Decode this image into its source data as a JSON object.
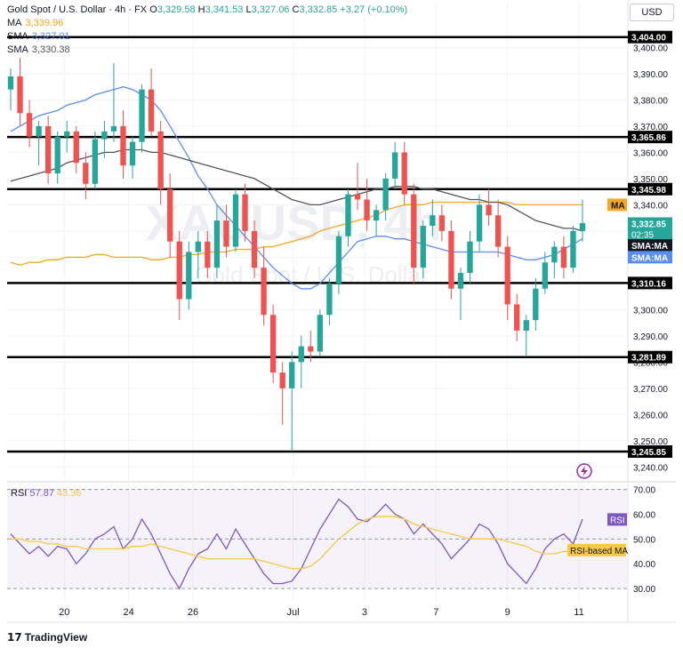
{
  "header": {
    "symbol": "Gold Spot / U.S. Dollar · 4h · FX",
    "open_label": "O",
    "open": "3,329.58",
    "high_label": "H",
    "high": "3,341.53",
    "low_label": "L",
    "low": "3,327.06",
    "close_label": "C",
    "close": "3,332.85",
    "change": "+3.27 (+0.10%)",
    "ma_label": "MA",
    "ma_value": "3,339.96",
    "sma1_label": "SMA",
    "sma1_value": "3,327.01",
    "sma2_label": "SMA",
    "sma2_value": "3,330.38"
  },
  "currency": "USD",
  "watermark": {
    "symbol": "XAUUSD, 4h",
    "name": "Gold Spot / U.S. Dollar"
  },
  "branding": "TradingView",
  "colors": {
    "up": "#26a69a",
    "down": "#ef5350",
    "ma": "#f5a623",
    "sma_fast": "#5b8def",
    "sma_slow": "#555555",
    "rsi": "#7e57c2",
    "rsi_ma": "#f7c948",
    "level": "#000000"
  },
  "chart_data": [
    {
      "type": "candlestick",
      "title": "Gold Spot / U.S. Dollar · 4h · FX",
      "ylim": [
        3235,
        3410
      ],
      "y_ticks": [
        3240,
        3250,
        3260,
        3270,
        3280,
        3290,
        3300,
        3310,
        3320,
        3330,
        3340,
        3350,
        3360,
        3370,
        3380,
        3390,
        3400
      ],
      "y_tick_labels": [
        "3,240.00",
        "3,250.00",
        "3,260.00",
        "3,270.00",
        "3,280.00",
        "3,290.00",
        "3,300.00",
        "3,310.00",
        "3,320.00",
        "3,330.00",
        "3,340.00",
        "3,350.00",
        "3,360.00",
        "3,370.00",
        "3,380.00",
        "3,390.00",
        "3,400.00"
      ],
      "x_tick_labels": [
        "20",
        "24",
        "26",
        "Jul",
        "3",
        "7",
        "9",
        "11"
      ],
      "horizontal_levels": [
        {
          "value": 3404.0,
          "label": "3,404.00"
        },
        {
          "value": 3365.86,
          "label": "3,365.86"
        },
        {
          "value": 3345.98,
          "label": "3,345.98"
        },
        {
          "value": 3310.16,
          "label": "3,310.16"
        },
        {
          "value": 3281.89,
          "label": "3,281.89"
        },
        {
          "value": 3245.85,
          "label": "3,245.85"
        }
      ],
      "price_tags": [
        {
          "value": 3340.0,
          "label": "MA",
          "color": "#f5a623"
        },
        {
          "value": 3332.85,
          "label": "3,332.85",
          "sub": "02:35",
          "color": "#26a69a"
        },
        {
          "value": 3324.5,
          "label": "SMA:MA",
          "color": "#131722"
        },
        {
          "value": 3320.0,
          "label": "SMA:MA",
          "color": "#5b8def"
        }
      ],
      "candles": [
        [
          3384,
          3392,
          3376,
          3389
        ],
        [
          3389,
          3396,
          3370,
          3375
        ],
        [
          3375,
          3380,
          3362,
          3366
        ],
        [
          3366,
          3372,
          3355,
          3370
        ],
        [
          3370,
          3374,
          3348,
          3352
        ],
        [
          3352,
          3368,
          3348,
          3366
        ],
        [
          3366,
          3372,
          3360,
          3368
        ],
        [
          3368,
          3370,
          3352,
          3356
        ],
        [
          3356,
          3360,
          3342,
          3348
        ],
        [
          3348,
          3368,
          3346,
          3365
        ],
        [
          3365,
          3372,
          3358,
          3368
        ],
        [
          3368,
          3394,
          3364,
          3370
        ],
        [
          3370,
          3376,
          3350,
          3355
        ],
        [
          3355,
          3366,
          3350,
          3364
        ],
        [
          3364,
          3386,
          3360,
          3384
        ],
        [
          3384,
          3392,
          3366,
          3368
        ],
        [
          3368,
          3372,
          3340,
          3346
        ],
        [
          3346,
          3352,
          3320,
          3326
        ],
        [
          3326,
          3330,
          3296,
          3304
        ],
        [
          3304,
          3326,
          3300,
          3322
        ],
        [
          3322,
          3330,
          3312,
          3326
        ],
        [
          3326,
          3330,
          3312,
          3316
        ],
        [
          3316,
          3340,
          3312,
          3334
        ],
        [
          3334,
          3340,
          3320,
          3324
        ],
        [
          3324,
          3346,
          3322,
          3344
        ],
        [
          3344,
          3348,
          3326,
          3330
        ],
        [
          3330,
          3334,
          3312,
          3316
        ],
        [
          3316,
          3324,
          3294,
          3298
        ],
        [
          3298,
          3302,
          3272,
          3276
        ],
        [
          3276,
          3280,
          3256,
          3270
        ],
        [
          3270,
          3284,
          3246,
          3280
        ],
        [
          3280,
          3290,
          3270,
          3286
        ],
        [
          3286,
          3292,
          3280,
          3284
        ],
        [
          3284,
          3300,
          3282,
          3298
        ],
        [
          3298,
          3312,
          3294,
          3310
        ],
        [
          3310,
          3330,
          3306,
          3328
        ],
        [
          3328,
          3346,
          3324,
          3344
        ],
        [
          3344,
          3356,
          3338,
          3342
        ],
        [
          3342,
          3350,
          3330,
          3334
        ],
        [
          3334,
          3340,
          3328,
          3338
        ],
        [
          3338,
          3352,
          3334,
          3350
        ],
        [
          3350,
          3364,
          3346,
          3360
        ],
        [
          3360,
          3364,
          3340,
          3344
        ],
        [
          3344,
          3348,
          3310,
          3316
        ],
        [
          3316,
          3334,
          3312,
          3332
        ],
        [
          3332,
          3342,
          3328,
          3336
        ],
        [
          3336,
          3340,
          3326,
          3330
        ],
        [
          3330,
          3334,
          3304,
          3308
        ],
        [
          3308,
          3316,
          3296,
          3314
        ],
        [
          3314,
          3330,
          3310,
          3326
        ],
        [
          3326,
          3344,
          3322,
          3340
        ],
        [
          3340,
          3346,
          3332,
          3336
        ],
        [
          3336,
          3342,
          3320,
          3324
        ],
        [
          3324,
          3328,
          3296,
          3302
        ],
        [
          3302,
          3306,
          3288,
          3292
        ],
        [
          3292,
          3298,
          3282,
          3296
        ],
        [
          3296,
          3312,
          3292,
          3308
        ],
        [
          3308,
          3322,
          3306,
          3318
        ],
        [
          3318,
          3326,
          3312,
          3324
        ],
        [
          3324,
          3328,
          3312,
          3316
        ],
        [
          3316,
          3332,
          3314,
          3330
        ],
        [
          3330,
          3342,
          3326,
          3333
        ]
      ],
      "series": [
        {
          "name": "MA",
          "values": [
            3318,
            3317,
            3318,
            3318,
            3319,
            3319,
            3320,
            3320,
            3320,
            3321,
            3321,
            3320,
            3320,
            3320,
            3320,
            3319,
            3319,
            3320,
            3320,
            3321,
            3321,
            3322,
            3322,
            3322,
            3323,
            3323,
            3323,
            3324,
            3324,
            3325,
            3326,
            3327,
            3328,
            3330,
            3331,
            3332,
            3333,
            3334,
            3335,
            3336,
            3338,
            3339,
            3340,
            3340,
            3340,
            3341,
            3341,
            3341,
            3341,
            3341,
            3341,
            3341,
            3341,
            3341,
            3340,
            3340,
            3340,
            3340,
            3340,
            3340,
            3340,
            3340
          ]
        },
        {
          "name": "SMA",
          "values": [
            3368,
            3370,
            3372,
            3374,
            3375,
            3376,
            3378,
            3379,
            3380,
            3382,
            3383,
            3384,
            3385,
            3384,
            3382,
            3380,
            3376,
            3370,
            3364,
            3358,
            3351,
            3346,
            3340,
            3336,
            3332,
            3328,
            3324,
            3320,
            3316,
            3313,
            3310,
            3308,
            3308,
            3310,
            3314,
            3318,
            3322,
            3326,
            3327,
            3328,
            3328,
            3327,
            3327,
            3326,
            3325,
            3324,
            3323,
            3322,
            3322,
            3322,
            3322,
            3322,
            3322,
            3321,
            3320,
            3319,
            3319,
            3320,
            3321,
            3323,
            3325,
            3327
          ]
        },
        {
          "name": "SMA",
          "values": [
            3349,
            3350,
            3351,
            3352,
            3353,
            3354,
            3356,
            3357,
            3358,
            3359,
            3360,
            3360,
            3361,
            3361,
            3361,
            3360,
            3360,
            3359,
            3358,
            3357,
            3356,
            3355,
            3354,
            3353,
            3352,
            3351,
            3350,
            3348,
            3346,
            3344,
            3342,
            3341,
            3340,
            3340,
            3341,
            3342,
            3343,
            3344,
            3345,
            3346,
            3346,
            3347,
            3347,
            3347,
            3346,
            3346,
            3345,
            3344,
            3343,
            3342,
            3342,
            3341,
            3341,
            3340,
            3338,
            3336,
            3334,
            3333,
            3332,
            3331,
            3331,
            3330
          ]
        }
      ]
    },
    {
      "type": "line",
      "title": "RSI",
      "ylim": [
        25,
        72
      ],
      "y_ticks": [
        30,
        40,
        50,
        60,
        70
      ],
      "y_tick_labels": [
        "30.00",
        "40.00",
        "50.00",
        "60.00",
        "70.00"
      ],
      "price_tags": [
        {
          "value": 57.87,
          "label": "RSI",
          "color": "#7e57c2"
        },
        {
          "value": 45.5,
          "label": "RSI-based MA",
          "color": "#f7c948"
        }
      ],
      "series": [
        {
          "name": "RSI",
          "values": [
            52,
            48,
            44,
            47,
            43,
            47,
            46,
            40,
            44,
            50,
            52,
            55,
            46,
            50,
            58,
            52,
            44,
            36,
            30,
            38,
            44,
            46,
            52,
            46,
            54,
            48,
            42,
            36,
            32,
            32,
            33,
            38,
            46,
            54,
            60,
            66,
            63,
            58,
            57,
            60,
            64,
            60,
            58,
            52,
            56,
            52,
            48,
            42,
            46,
            50,
            56,
            54,
            48,
            40,
            36,
            32,
            38,
            46,
            50,
            52,
            48,
            58
          ]
        },
        {
          "name": "RSI-based MA",
          "values": [
            50,
            50,
            49,
            49,
            48,
            48,
            47,
            47,
            46,
            46,
            46,
            46,
            46,
            47,
            47,
            48,
            47,
            46,
            45,
            44,
            43,
            42,
            42,
            42,
            42,
            42,
            42,
            41,
            40,
            39,
            38,
            38,
            39,
            42,
            46,
            50,
            53,
            56,
            58,
            59,
            59,
            59,
            58,
            56,
            55,
            54,
            53,
            52,
            51,
            50,
            50,
            50,
            50,
            49,
            48,
            47,
            45,
            44,
            44,
            45,
            45,
            46
          ]
        }
      ],
      "legend": [
        {
          "label": "RSI",
          "value": "57.87"
        },
        {
          "value": "43.36"
        }
      ]
    }
  ]
}
